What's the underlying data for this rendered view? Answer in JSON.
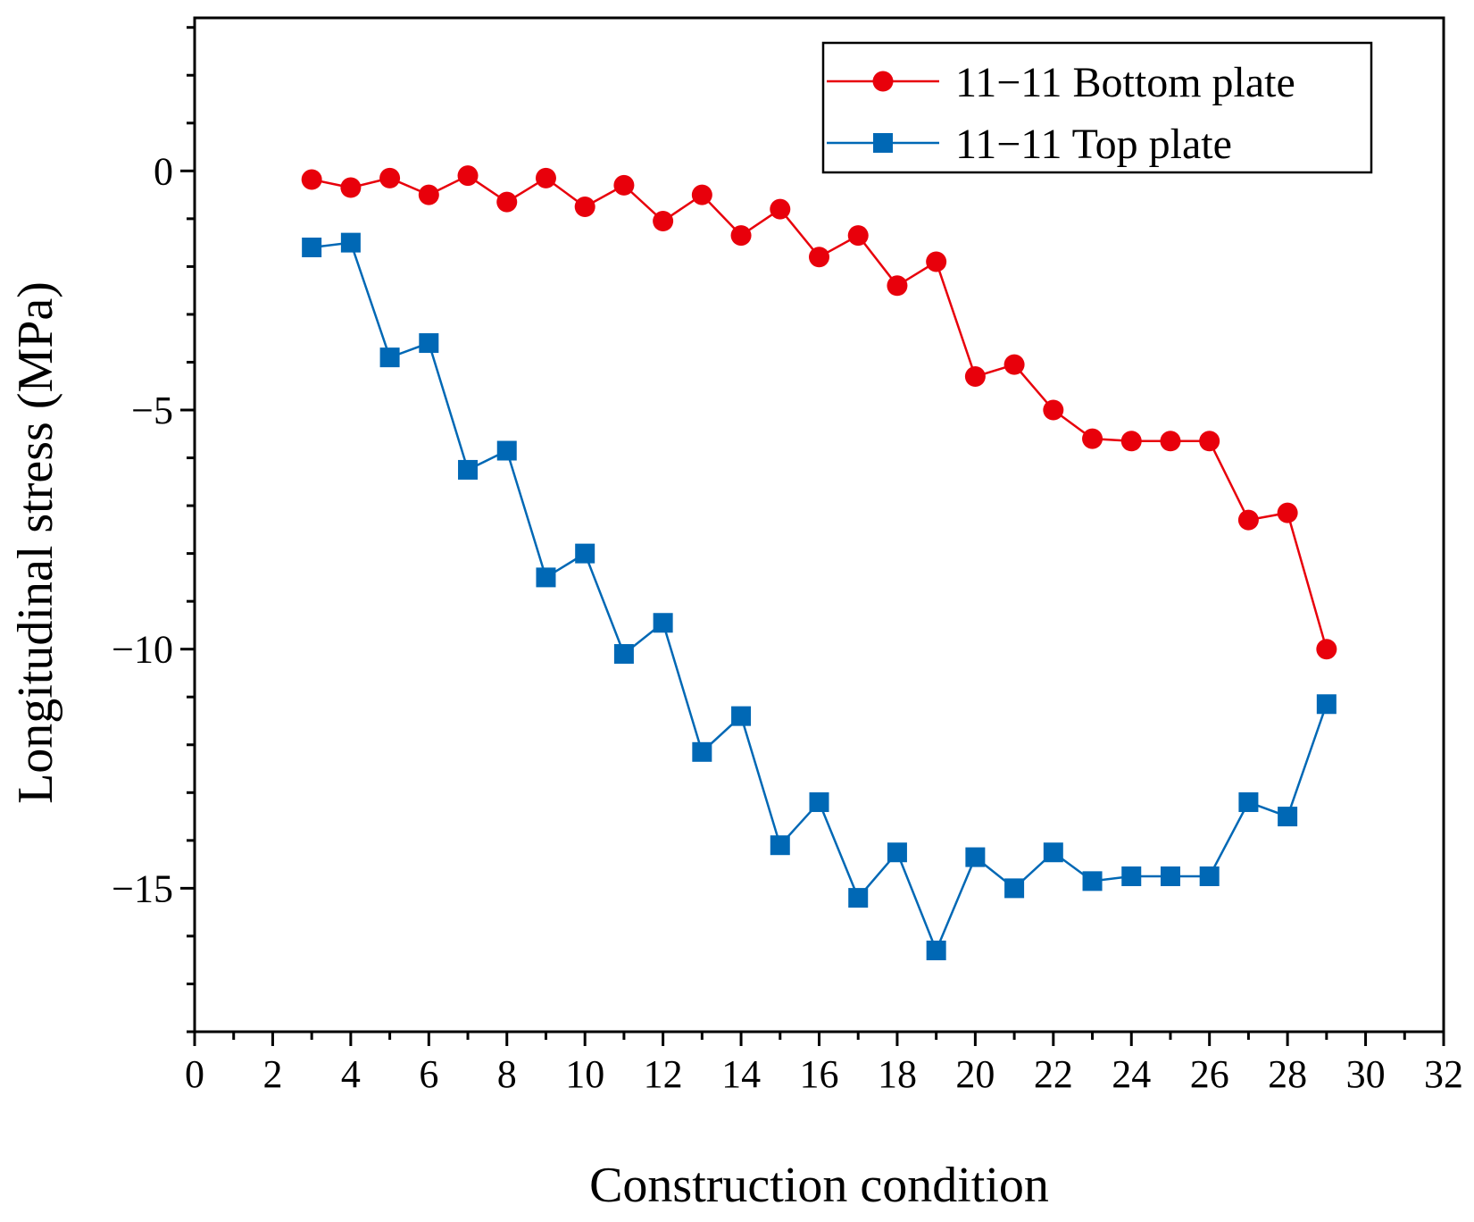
{
  "chart_data": {
    "type": "line",
    "title": "",
    "xlabel": "Construction condition",
    "ylabel": "Longitudinal stress (MPa)",
    "xlim": [
      0,
      32
    ],
    "ylim": [
      -18,
      3.2
    ],
    "x_ticks": [
      0,
      2,
      4,
      6,
      8,
      10,
      12,
      14,
      16,
      18,
      20,
      22,
      24,
      26,
      28,
      30,
      32
    ],
    "x_tick_labels": [
      "0",
      "2",
      "4",
      "6",
      "8",
      "10",
      "12",
      "14",
      "16",
      "18",
      "20",
      "22",
      "24",
      "26",
      "28",
      "30",
      "32"
    ],
    "y_ticks": [
      0,
      -5,
      -10,
      -15
    ],
    "y_tick_labels": [
      "0",
      "−5",
      "−10",
      "−15"
    ],
    "legend_position": "top-right",
    "x": [
      3,
      4,
      5,
      6,
      7,
      8,
      9,
      10,
      11,
      12,
      13,
      14,
      15,
      16,
      17,
      18,
      19,
      20,
      21,
      22,
      23,
      24,
      25,
      26,
      27,
      28,
      29
    ],
    "series": [
      {
        "name": "11−11 Bottom plate",
        "color": "#e8000b",
        "marker": "circle",
        "values": [
          -0.18,
          -0.35,
          -0.15,
          -0.5,
          -0.1,
          -0.65,
          -0.15,
          -0.75,
          -0.3,
          -1.05,
          -0.5,
          -1.35,
          -0.8,
          -1.8,
          -1.35,
          -2.4,
          -1.9,
          -4.3,
          -4.05,
          -5.0,
          -5.6,
          -5.65,
          -5.65,
          -5.65,
          -7.3,
          -7.15,
          -10.0
        ]
      },
      {
        "name": "11−11 Top plate",
        "color": "#0068b5",
        "marker": "square",
        "values": [
          -1.6,
          -1.5,
          -3.9,
          -3.6,
          -6.25,
          -5.85,
          -8.5,
          -8.0,
          -10.1,
          -9.45,
          -12.15,
          -11.4,
          -14.1,
          -13.2,
          -15.2,
          -14.25,
          -16.3,
          -14.35,
          -15.0,
          -14.25,
          -14.85,
          -14.75,
          -14.75,
          -14.75,
          -13.2,
          -13.5,
          -11.15
        ]
      }
    ]
  }
}
